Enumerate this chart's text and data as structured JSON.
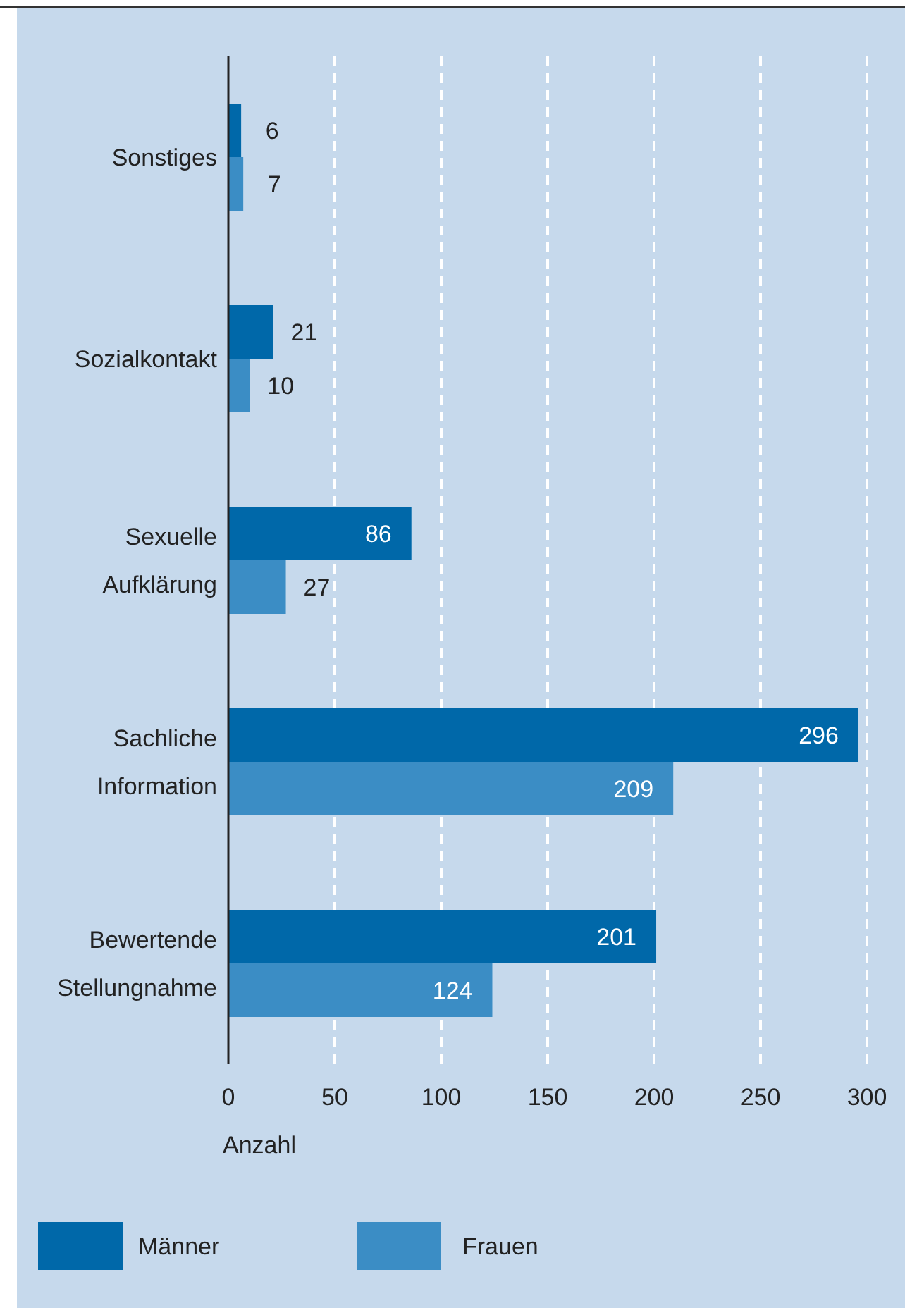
{
  "chart_data": {
    "type": "bar",
    "orientation": "horizontal",
    "xlabel": "Anzahl",
    "categories": [
      "Sonstiges",
      "Sozialkontakt",
      "Sexuelle Aufklärung",
      "Sachliche Information",
      "Bewertende Stellungnahme"
    ],
    "series": [
      {
        "name": "Männer",
        "color": "#0068a9",
        "values": [
          6,
          21,
          86,
          296,
          201
        ]
      },
      {
        "name": "Frauen",
        "color": "#3b8dc5",
        "values": [
          7,
          10,
          27,
          209,
          124
        ]
      }
    ],
    "xlim": [
      0,
      300
    ],
    "xticks": [
      0,
      50,
      100,
      150,
      200,
      250,
      300
    ],
    "grid": "x",
    "legend": "bottom",
    "data_labels": true
  }
}
